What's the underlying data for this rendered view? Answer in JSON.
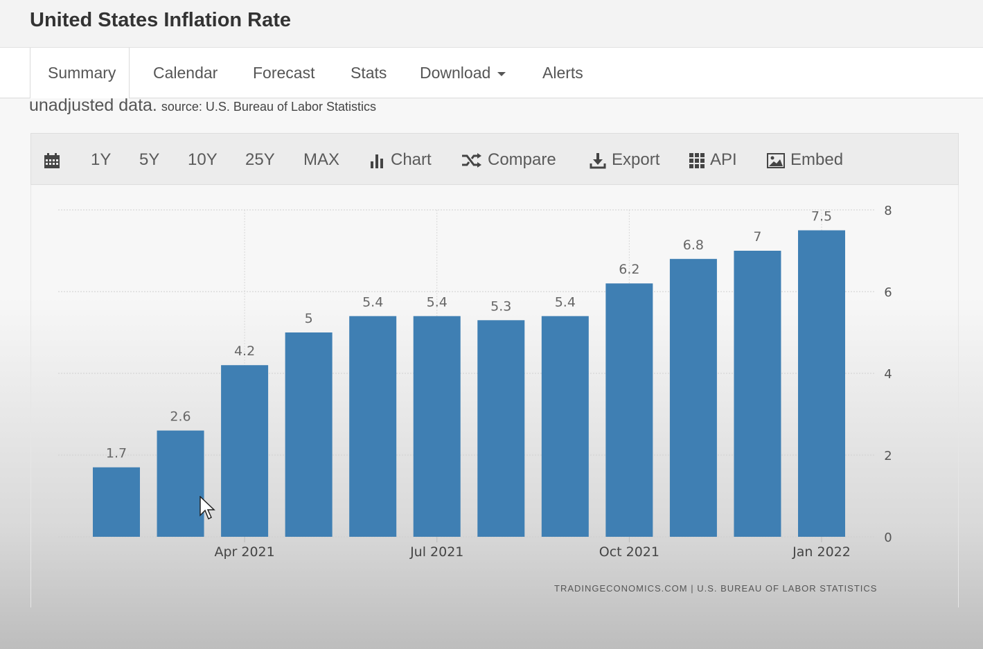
{
  "page": {
    "title": "United States Inflation Rate"
  },
  "tabs": [
    {
      "label": "Summary"
    },
    {
      "label": "Calendar"
    },
    {
      "label": "Forecast"
    },
    {
      "label": "Stats"
    },
    {
      "label": "Download"
    },
    {
      "label": "Alerts"
    }
  ],
  "source": {
    "lead": "unadjusted data.",
    "text": "source: U.S. Bureau of Labor Statistics"
  },
  "toolbar": {
    "ranges": [
      "1Y",
      "5Y",
      "10Y",
      "25Y",
      "MAX"
    ],
    "chart_label": "Chart",
    "compare_label": "Compare",
    "export_label": "Export",
    "api_label": "API",
    "embed_label": "Embed"
  },
  "chart_data": {
    "type": "bar",
    "values": [
      1.7,
      2.6,
      4.2,
      5,
      5.4,
      5.4,
      5.3,
      5.4,
      6.2,
      6.8,
      7,
      7.5
    ],
    "value_labels": [
      "1.7",
      "2.6",
      "4.2",
      "5",
      "5.4",
      "5.4",
      "5.3",
      "5.4",
      "6.2",
      "6.8",
      "7",
      "7.5"
    ],
    "x_ticks": [
      {
        "index": 2,
        "label": "Apr 2021"
      },
      {
        "index": 5,
        "label": "Jul 2021"
      },
      {
        "index": 8,
        "label": "Oct 2021"
      },
      {
        "index": 11,
        "label": "Jan 2022"
      }
    ],
    "y_ticks": [
      0,
      2,
      4,
      6,
      8
    ],
    "ylim": [
      0,
      8
    ],
    "y_axis_side": "right",
    "grid": true,
    "bar_color": "#3f7fb3",
    "credit": "TRADINGECONOMICS.COM | U.S. BUREAU OF LABOR STATISTICS"
  }
}
